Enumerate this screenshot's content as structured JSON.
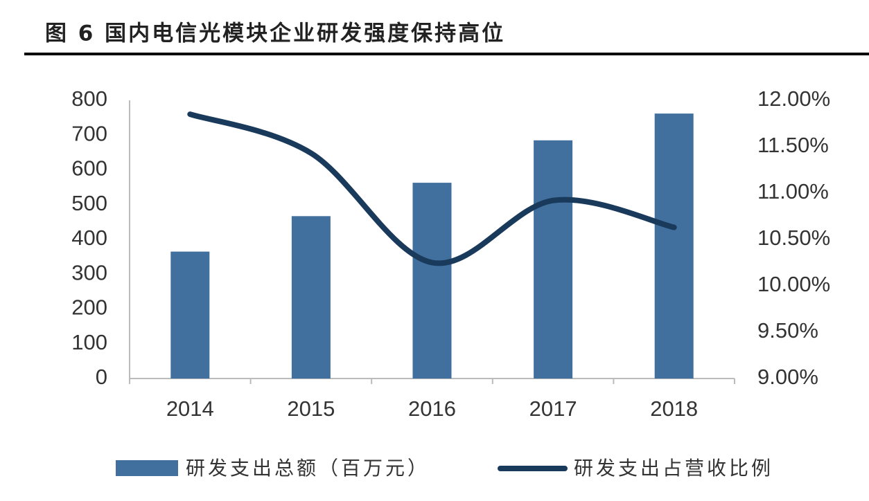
{
  "chart_data": {
    "type": "combo",
    "title": "图 6 国内电信光模块企业研发强度保持高位",
    "categories": [
      "2014",
      "2015",
      "2016",
      "2017",
      "2018"
    ],
    "series": [
      {
        "name": "研发支出总额（百万元）",
        "type": "bar",
        "color": "#41709e",
        "values": [
          365,
          467,
          563,
          685,
          762
        ]
      },
      {
        "name": "研发支出占营收比例",
        "type": "line",
        "axis": "y2",
        "color": "#1a3a5c",
        "values": [
          11.85,
          11.43,
          10.25,
          10.92,
          10.63
        ]
      }
    ],
    "ylim": [
      0,
      800
    ],
    "yticks": [
      0,
      100,
      200,
      300,
      400,
      500,
      600,
      700,
      800
    ],
    "y2lim": [
      9,
      12
    ],
    "y2ticks": [
      {
        "value": 9,
        "label": "9.00%"
      },
      {
        "value": 9.5,
        "label": "9.50%"
      },
      {
        "value": 10,
        "label": "10.00%"
      },
      {
        "value": 10.5,
        "label": "10.50%"
      },
      {
        "value": 11,
        "label": "11.00%"
      },
      {
        "value": 11.5,
        "label": "11.50%"
      },
      {
        "value": 12,
        "label": "12.00%"
      }
    ],
    "legend": "bottom"
  }
}
